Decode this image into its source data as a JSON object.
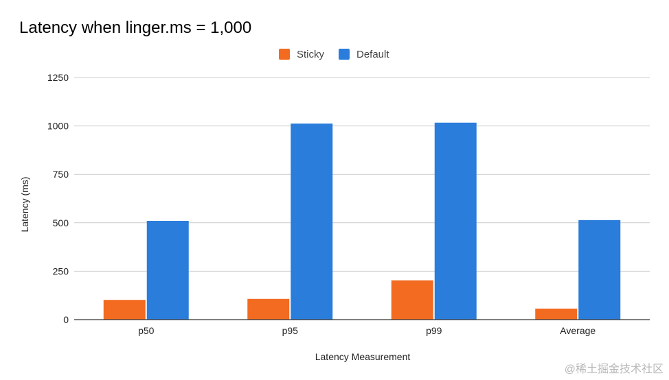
{
  "chart_data": {
    "type": "bar",
    "title": "Latency when linger.ms = 1,000",
    "xlabel": "Latency Measurement",
    "ylabel": "Latency (ms)",
    "categories": [
      "p50",
      "p95",
      "p99",
      "Average"
    ],
    "series": [
      {
        "name": "Sticky",
        "color": "#f26b21",
        "values": [
          102,
          107,
          203,
          57
        ]
      },
      {
        "name": "Default",
        "color": "#2a7ddb",
        "values": [
          510,
          1012,
          1017,
          514
        ]
      }
    ],
    "ylim": [
      0,
      1250
    ],
    "yticks": [
      "0",
      "250",
      "500",
      "750",
      "1000",
      "1250"
    ],
    "grid": true,
    "legend_position": "top-center"
  },
  "watermark": "@稀土掘金技术社区"
}
